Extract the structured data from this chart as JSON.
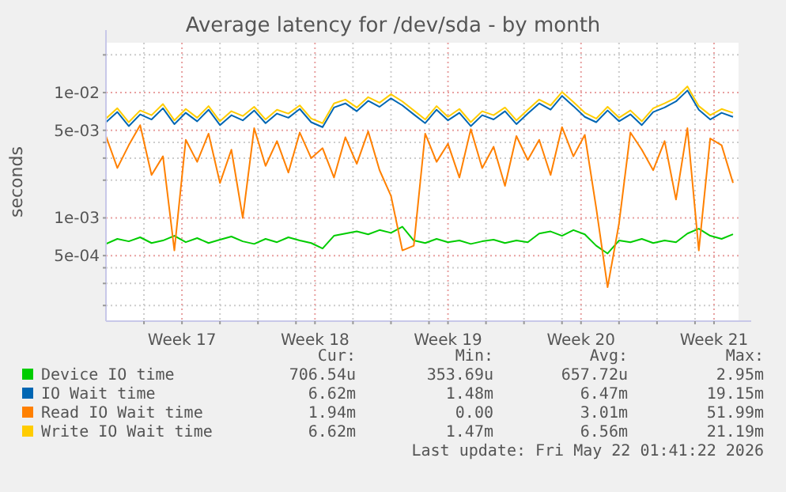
{
  "chart_data": {
    "type": "line",
    "title": "Average latency for /dev/sda - by month",
    "ylabel": "seconds",
    "log": "y",
    "grid": true,
    "legend": "bottom",
    "marker": "none",
    "line_style": "solid",
    "x": [
      "2026-04-19T00:00",
      "2026-04-19T14:24",
      "2026-04-20T04:48",
      "2026-04-20T19:12",
      "2026-04-21T09:36",
      "2026-04-22T00:00",
      "2026-04-22T14:24",
      "2026-04-23T04:48",
      "2026-04-23T19:12",
      "2026-04-24T09:36",
      "2026-04-25T00:00",
      "2026-04-25T14:24",
      "2026-04-26T04:48",
      "2026-04-26T19:12",
      "2026-04-27T09:36",
      "2026-04-28T00:00",
      "2026-04-28T14:24",
      "2026-04-29T04:48",
      "2026-04-29T19:12",
      "2026-04-30T09:36",
      "2026-05-01T00:00",
      "2026-05-01T14:24",
      "2026-05-02T04:48",
      "2026-05-02T19:12",
      "2026-05-03T09:36",
      "2026-05-04T00:00",
      "2026-05-04T14:24",
      "2026-05-05T04:48",
      "2026-05-05T19:12",
      "2026-05-06T09:36",
      "2026-05-07T00:00",
      "2026-05-07T14:24",
      "2026-05-08T04:48",
      "2026-05-08T19:12",
      "2026-05-09T09:36",
      "2026-05-10T00:00",
      "2026-05-10T14:24",
      "2026-05-11T04:48",
      "2026-05-11T19:12",
      "2026-05-12T09:36",
      "2026-05-13T00:00",
      "2026-05-13T14:24",
      "2026-05-14T04:48",
      "2026-05-14T19:12",
      "2026-05-15T09:36",
      "2026-05-16T00:00",
      "2026-05-16T14:24",
      "2026-05-17T04:48",
      "2026-05-17T19:12",
      "2026-05-18T09:36",
      "2026-05-19T00:00",
      "2026-05-19T14:24",
      "2026-05-20T04:48",
      "2026-05-20T19:12",
      "2026-05-21T09:36",
      "2026-05-22T00:00"
    ],
    "xlim": [
      "2026-04-19T00:00",
      "2026-05-22T07:00"
    ],
    "xticks": [
      {
        "value": "2026-04-23T00:00",
        "label": "Week 17"
      },
      {
        "value": "2026-04-30T00:00",
        "label": "Week 18"
      },
      {
        "value": "2026-05-07T00:00",
        "label": "Week 19"
      },
      {
        "value": "2026-05-14T00:00",
        "label": "Week 20"
      },
      {
        "value": "2026-05-21T00:00",
        "label": "Week 21"
      },
      {
        "value": "2026-04-21T00:00",
        "label": null
      },
      {
        "value": "2026-04-25T00:00",
        "label": null
      },
      {
        "value": "2026-04-27T00:00",
        "label": null
      },
      {
        "value": "2026-04-29T00:00",
        "label": null
      },
      {
        "value": "2026-05-02T00:00",
        "label": null
      },
      {
        "value": "2026-05-04T00:00",
        "label": null
      },
      {
        "value": "2026-05-06T00:00",
        "label": null
      },
      {
        "value": "2026-05-09T00:00",
        "label": null
      },
      {
        "value": "2026-05-11T00:00",
        "label": null
      },
      {
        "value": "2026-05-13T00:00",
        "label": null
      },
      {
        "value": "2026-05-16T00:00",
        "label": null
      },
      {
        "value": "2026-05-18T00:00",
        "label": null
      },
      {
        "value": "2026-05-20T00:00",
        "label": null
      }
    ],
    "ylim": [
      0.00015,
      0.025
    ],
    "yticks": [
      {
        "value": 0.0005,
        "label": "5e-04"
      },
      {
        "value": 0.001,
        "label": "1e-03"
      },
      {
        "value": 0.005,
        "label": "5e-03"
      },
      {
        "value": 0.01,
        "label": "1e-02"
      },
      {
        "value": 0.0002,
        "label": null
      },
      {
        "value": 0.0003,
        "label": null
      },
      {
        "value": 0.0004,
        "label": null
      },
      {
        "value": 0.002,
        "label": null
      },
      {
        "value": 0.003,
        "label": null
      },
      {
        "value": 0.004,
        "label": null
      },
      {
        "value": 0.02,
        "label": null
      }
    ],
    "series": [
      {
        "name": "Device IO time",
        "color": "#00cc00",
        "values": [
          0.00062,
          0.00068,
          0.00065,
          0.0007,
          0.00063,
          0.00066,
          0.00072,
          0.00064,
          0.00069,
          0.00063,
          0.00067,
          0.00071,
          0.00065,
          0.00062,
          0.00068,
          0.00064,
          0.0007,
          0.00066,
          0.00063,
          0.00057,
          0.00072,
          0.00075,
          0.00078,
          0.00074,
          0.0008,
          0.00076,
          0.00085,
          0.00066,
          0.00063,
          0.00068,
          0.00064,
          0.00066,
          0.00062,
          0.00065,
          0.00067,
          0.00063,
          0.00066,
          0.00064,
          0.00075,
          0.00078,
          0.00072,
          0.0008,
          0.00074,
          0.0006,
          0.00052,
          0.00066,
          0.00064,
          0.00068,
          0.00063,
          0.00066,
          0.00064,
          0.00075,
          0.00082,
          0.00072,
          0.00068,
          0.00074
        ]
      },
      {
        "name": "IO Wait time",
        "color": "#0066b3",
        "values": [
          0.0058,
          0.007,
          0.0054,
          0.0067,
          0.0061,
          0.0075,
          0.0056,
          0.0069,
          0.0059,
          0.0073,
          0.0055,
          0.0066,
          0.006,
          0.0072,
          0.0057,
          0.0068,
          0.0063,
          0.0074,
          0.0058,
          0.0053,
          0.0076,
          0.0082,
          0.0071,
          0.0086,
          0.0077,
          0.009,
          0.0079,
          0.0067,
          0.0057,
          0.0073,
          0.006,
          0.0069,
          0.0054,
          0.0066,
          0.0061,
          0.0071,
          0.0056,
          0.0068,
          0.0082,
          0.0073,
          0.0094,
          0.0078,
          0.0064,
          0.0058,
          0.0072,
          0.0059,
          0.0067,
          0.0055,
          0.007,
          0.0076,
          0.0085,
          0.0104,
          0.0073,
          0.0061,
          0.0069,
          0.0064
        ]
      },
      {
        "name": "Read IO Wait time",
        "color": "#ff8000",
        "values": [
          0.0045,
          0.0025,
          0.0038,
          0.0055,
          0.0022,
          0.0031,
          0.00055,
          0.0042,
          0.0028,
          0.0047,
          0.0019,
          0.0035,
          0.001,
          0.0052,
          0.0026,
          0.0041,
          0.0023,
          0.0048,
          0.003,
          0.0036,
          0.0021,
          0.0044,
          0.0027,
          0.0049,
          0.0024,
          0.0015,
          0.00055,
          0.0006,
          0.0047,
          0.0028,
          0.0039,
          0.0021,
          0.0051,
          0.0025,
          0.0037,
          0.0018,
          0.0045,
          0.0029,
          0.0042,
          0.0022,
          0.0053,
          0.0031,
          0.0046,
          0.0012,
          0.00028,
          0.0009,
          0.0048,
          0.0035,
          0.0024,
          0.0041,
          0.0014,
          0.0052,
          0.00055,
          0.0043,
          0.0038,
          0.0019
        ]
      },
      {
        "name": "Write IO Wait time",
        "color": "#ffcc00",
        "values": [
          0.0062,
          0.0075,
          0.0058,
          0.0072,
          0.0066,
          0.0081,
          0.006,
          0.0074,
          0.0063,
          0.0078,
          0.0059,
          0.0071,
          0.0065,
          0.0077,
          0.0061,
          0.0073,
          0.0068,
          0.0079,
          0.0062,
          0.0057,
          0.0082,
          0.0088,
          0.0076,
          0.0092,
          0.0083,
          0.0097,
          0.0085,
          0.0072,
          0.0061,
          0.0078,
          0.0064,
          0.0074,
          0.0058,
          0.0071,
          0.0066,
          0.0076,
          0.006,
          0.0073,
          0.0088,
          0.0079,
          0.0101,
          0.0084,
          0.0069,
          0.0062,
          0.0077,
          0.0063,
          0.0072,
          0.0059,
          0.0075,
          0.0082,
          0.0091,
          0.0112,
          0.0078,
          0.0066,
          0.0074,
          0.0069
        ]
      }
    ],
    "annotations": [
      "Cur:",
      "Min:",
      "Avg:",
      "Max:",
      "706.54u",
      "353.69u",
      "657.72u",
      "2.95m",
      "6.62m",
      "1.48m",
      "6.47m",
      "19.15m",
      "1.94m",
      "0.00",
      "3.01m",
      "51.99m",
      "6.62m",
      "1.47m",
      "6.56m",
      "21.19m",
      "Last update: Fri May 22 01:41:22 2026"
    ]
  }
}
